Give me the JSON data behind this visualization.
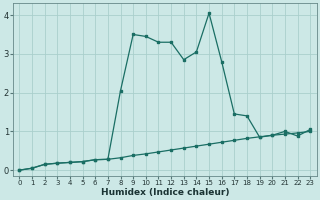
{
  "xlabel": "Humidex (Indice chaleur)",
  "background_color": "#cce8e6",
  "grid_color": "#aacfcc",
  "line_color": "#1a6e64",
  "x_min": -0.5,
  "x_max": 23.5,
  "y_min": -0.15,
  "y_max": 4.3,
  "yticks": [
    0,
    1,
    2,
    3,
    4
  ],
  "xticks": [
    0,
    1,
    2,
    3,
    4,
    5,
    6,
    7,
    8,
    9,
    10,
    11,
    12,
    13,
    14,
    15,
    16,
    17,
    18,
    19,
    20,
    21,
    22,
    23
  ],
  "line1_x": [
    0,
    1,
    2,
    3,
    4,
    5,
    6,
    7,
    8,
    9,
    10,
    11,
    12,
    13,
    14,
    15,
    16,
    17,
    18,
    19,
    20,
    21,
    22,
    23
  ],
  "line1_y": [
    0.0,
    0.05,
    0.15,
    0.18,
    0.2,
    0.22,
    0.27,
    0.28,
    0.32,
    0.38,
    0.42,
    0.47,
    0.52,
    0.57,
    0.62,
    0.67,
    0.72,
    0.77,
    0.82,
    0.86,
    0.9,
    0.93,
    0.96,
    1.0
  ],
  "line2_x": [
    0,
    1,
    2,
    3,
    4,
    5,
    6,
    7,
    8,
    9,
    10,
    11,
    12,
    13,
    14,
    15,
    16,
    17,
    18,
    19,
    20,
    21,
    22,
    23
  ],
  "line2_y": [
    0.0,
    0.05,
    0.15,
    0.18,
    0.2,
    0.22,
    0.27,
    0.28,
    2.05,
    3.5,
    3.45,
    3.3,
    3.3,
    2.85,
    3.05,
    4.05,
    2.8,
    1.45,
    1.4,
    0.85,
    0.9,
    1.0,
    0.88,
    1.05
  ]
}
